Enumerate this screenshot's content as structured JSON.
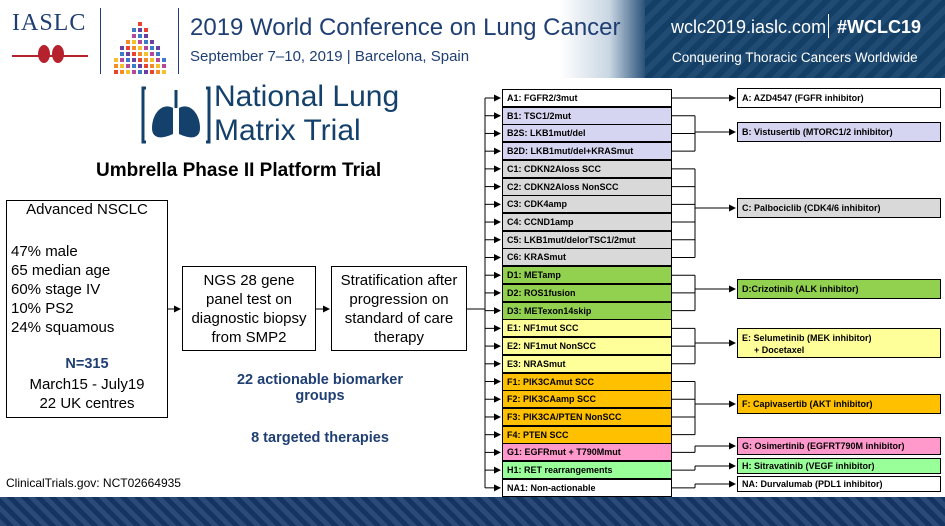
{
  "header": {
    "org": "IASLC",
    "conference": "2019 World Conference on Lung Cancer",
    "dates": "September 7–10, 2019 | Barcelona, Spain",
    "url": "wclc2019.iaslc.com",
    "hashtag": "#WCLC19",
    "slogan": "Conquering Thoracic Cancers Worldwide"
  },
  "logo": {
    "line1": "National Lung",
    "line2": "Matrix Trial"
  },
  "subtitle": "Umbrella Phase II Platform Trial",
  "population": {
    "title": "Advanced NSCLC",
    "stats": [
      "47% male",
      "65 median age",
      "60% stage IV",
      "10% PS2",
      "24% squamous"
    ],
    "n": "N=315",
    "period": "March15 - July19",
    "centres": "22 UK centres"
  },
  "steps": {
    "ngs": "NGS 28 gene panel test on diagnostic biopsy from SMP2",
    "strat": "Stratification after progression on standard of care therapy"
  },
  "summary": {
    "groups": "22 actionable biomarker groups",
    "therapies": "8 targeted therapies"
  },
  "footer_note": "ClinicalTrials.gov: NCT02664935",
  "colors": {
    "arm_a": "#ffffff",
    "arm_b": "#d5d5f1",
    "arm_c": "#d9d9d9",
    "arm_d": "#92d050",
    "arm_e": "#ffff99",
    "arm_f": "#ffc000",
    "arm_g": "#ff99cc",
    "arm_h": "#99ff99",
    "arm_na": "#ffffff",
    "brand": "#14416b"
  },
  "biomarkers": [
    {
      "label": "A1: FGFR2/3mut",
      "arm": "arm_a"
    },
    {
      "label": "B1: TSC1/2mut",
      "arm": "arm_b"
    },
    {
      "label": "B2S: LKB1mut/del",
      "arm": "arm_b"
    },
    {
      "label": "B2D: LKB1mut/del+KRASmut",
      "arm": "arm_b"
    },
    {
      "label": "C1: CDKN2Aloss SCC",
      "arm": "arm_c"
    },
    {
      "label": "C2: CDKN2Aloss NonSCC",
      "arm": "arm_c"
    },
    {
      "label": "C3: CDK4amp",
      "arm": "arm_c"
    },
    {
      "label": "C4: CCND1amp",
      "arm": "arm_c"
    },
    {
      "label": "C5: LKB1mut/delorTSC1/2mut",
      "arm": "arm_c"
    },
    {
      "label": "C6: KRASmut",
      "arm": "arm_c"
    },
    {
      "label": "D1: METamp",
      "arm": "arm_d"
    },
    {
      "label": "D2: ROS1fusion",
      "arm": "arm_d"
    },
    {
      "label": "D3: METexon14skip",
      "arm": "arm_d"
    },
    {
      "label": "E1: NF1mut SCC",
      "arm": "arm_e"
    },
    {
      "label": "E2: NF1mut NonSCC",
      "arm": "arm_e"
    },
    {
      "label": "E3: NRASmut",
      "arm": "arm_e"
    },
    {
      "label": "F1: PIK3CAmut SCC",
      "arm": "arm_f"
    },
    {
      "label": "F2: PIK3CAamp SCC",
      "arm": "arm_f"
    },
    {
      "label": "F3: PIK3CA/PTEN NonSCC",
      "arm": "arm_f"
    },
    {
      "label": "F4: PTEN SCC",
      "arm": "arm_f"
    },
    {
      "label": "G1: EGFRmut + T790Mmut",
      "arm": "arm_g"
    },
    {
      "label": "H1: RET rearrangements",
      "arm": "arm_h"
    },
    {
      "label": "NA1: Non-actionable",
      "arm": "arm_na"
    }
  ],
  "therapies": [
    {
      "label": "A: AZD4547 (FGFR inhibitor)",
      "arm": "arm_a"
    },
    {
      "label": "B: Vistusertib (MTORC1/2 inhibitor)",
      "arm": "arm_b"
    },
    {
      "label": "C: Palbociclib (CDK4/6 inhibitor)",
      "arm": "arm_c"
    },
    {
      "label": "D:Crizotinib (ALK inhibitor)",
      "arm": "arm_d"
    },
    {
      "label": "E: Selumetinib (MEK inhibitor)",
      "label2": "+ Docetaxel",
      "arm": "arm_e"
    },
    {
      "label": "F: Capivasertib (AKT inhibitor)",
      "arm": "arm_f"
    },
    {
      "label": "G: Osimertinib (EGFRT790M inhibitor)",
      "arm": "arm_g"
    },
    {
      "label": "H: Sitravatinib (VEGF inhibitor)",
      "arm": "arm_h"
    },
    {
      "label": "NA: Durvalumab (PDL1 inhibitor)",
      "arm": "arm_na"
    }
  ]
}
